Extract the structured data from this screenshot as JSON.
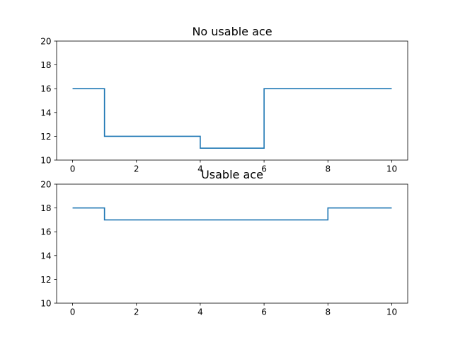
{
  "chart_data": [
    {
      "type": "line",
      "drawstyle": "steps-post",
      "title": "No usable ace",
      "x": [
        0,
        1,
        2,
        3,
        4,
        5,
        6,
        7,
        8,
        9,
        10
      ],
      "series": [
        {
          "values": [
            16,
            12,
            12,
            12,
            11,
            11,
            16,
            16,
            16,
            16,
            16
          ],
          "color": "#1f77b4"
        }
      ],
      "xlim": [
        -0.5,
        10.5
      ],
      "ylim": [
        10,
        20
      ],
      "xticks": [
        0,
        2,
        4,
        6,
        8,
        10
      ],
      "yticks": [
        10,
        12,
        14,
        16,
        18,
        20
      ],
      "grid": false
    },
    {
      "type": "line",
      "drawstyle": "steps-post",
      "title": "Usable ace",
      "x": [
        0,
        1,
        2,
        3,
        4,
        5,
        6,
        7,
        8,
        9,
        10
      ],
      "series": [
        {
          "values": [
            18,
            17,
            17,
            17,
            17,
            17,
            17,
            17,
            18,
            18,
            18
          ],
          "color": "#1f77b4"
        }
      ],
      "xlim": [
        -0.5,
        10.5
      ],
      "ylim": [
        10,
        20
      ],
      "xticks": [
        0,
        2,
        4,
        6,
        8,
        10
      ],
      "yticks": [
        10,
        12,
        14,
        16,
        18,
        20
      ],
      "grid": false
    }
  ]
}
